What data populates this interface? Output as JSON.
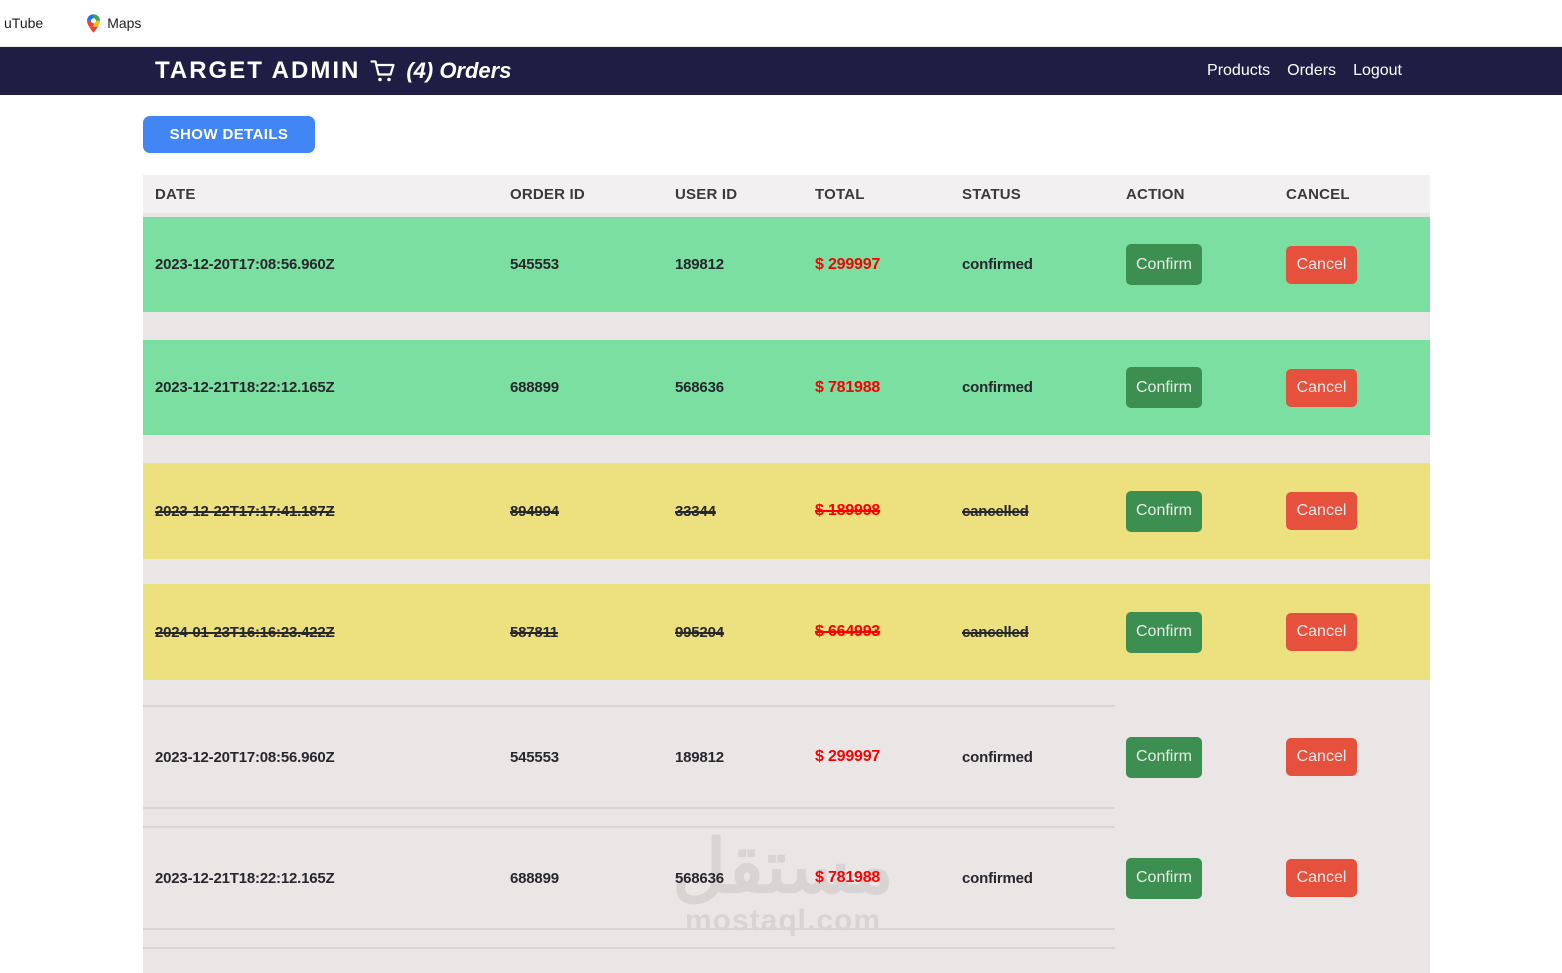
{
  "bookmarks_bar": {
    "items": [
      {
        "label": "uTube",
        "icon": null
      },
      {
        "label": "Maps",
        "icon": "maps-pin-icon"
      }
    ]
  },
  "header": {
    "title": "TARGET ADMIN",
    "cart_icon": "cart-icon",
    "subtitle": "(4) Orders",
    "nav": [
      "Products",
      "Orders",
      "Logout"
    ]
  },
  "toolbar": {
    "show_details_label": "SHOW DETAILS"
  },
  "table": {
    "columns": [
      "DATE",
      "ORDER ID",
      "USER ID",
      "TOTAL",
      "STATUS",
      "ACTION",
      "CANCEL"
    ],
    "confirm_label": "Confirm",
    "cancel_label": "Cancel",
    "rows": [
      {
        "date": "2023-12-20T17:08:56.960Z",
        "order_id": "545553",
        "user_id": "189812",
        "total": "$ 299997",
        "status": "confirmed",
        "style": "green",
        "struck": false
      },
      {
        "date": "2023-12-21T18:22:12.165Z",
        "order_id": "688899",
        "user_id": "568636",
        "total": "$ 781988",
        "status": "confirmed",
        "style": "green",
        "struck": false
      },
      {
        "date": "2023-12-22T17:17:41.187Z",
        "order_id": "894994",
        "user_id": "33344",
        "total": "$ 189998",
        "status": "cancelled",
        "style": "yellow",
        "struck": true
      },
      {
        "date": "2024-01-23T16:16:23.422Z",
        "order_id": "587811",
        "user_id": "995204",
        "total": "$ 664993",
        "status": "cancelled",
        "style": "yellow",
        "struck": true
      },
      {
        "date": "2023-12-20T17:08:56.960Z",
        "order_id": "545553",
        "user_id": "189812",
        "total": "$ 299997",
        "status": "confirmed",
        "style": "plain",
        "struck": false
      },
      {
        "date": "2023-12-21T18:22:12.165Z",
        "order_id": "688899",
        "user_id": "568636",
        "total": "$ 781988",
        "status": "confirmed",
        "style": "plain",
        "struck": false
      }
    ]
  },
  "watermark": {
    "arabic": "مستقل",
    "domain": "mostaql.com"
  },
  "colors": {
    "navbar_bg": "#201d44",
    "primary_button": "#4285f4",
    "row_confirmed_bg": "#7bdfa2",
    "row_cancelled_bg": "#ede07e",
    "confirm_button": "#3c8f50",
    "cancel_button": "#e6513e",
    "total_red": "#fa0000",
    "table_bg": "#eae6e6"
  }
}
